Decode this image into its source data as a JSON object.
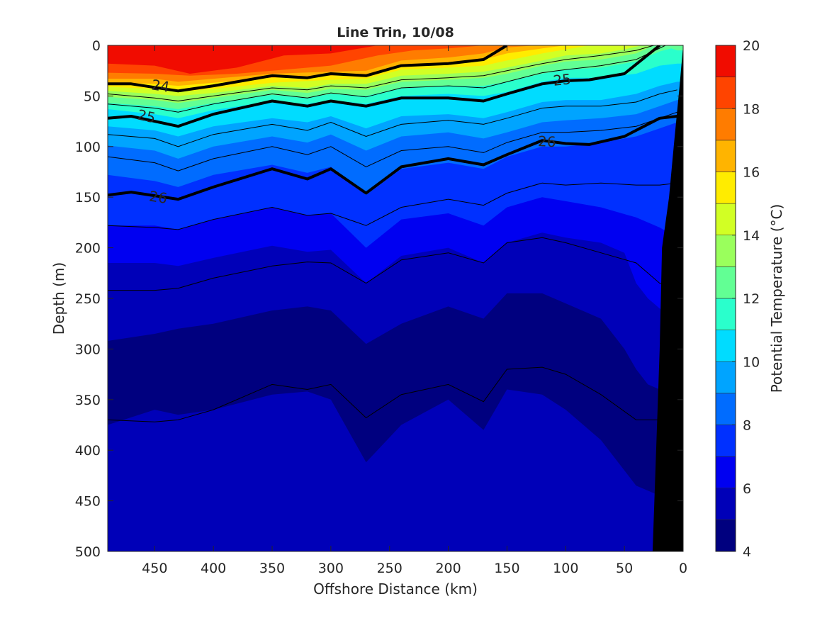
{
  "chart_data": {
    "type": "contourf",
    "title": "Line Trin, 10/08",
    "xlabel": "Offshore Distance (km)",
    "ylabel": "Depth (m)",
    "xlim": [
      490,
      0
    ],
    "ylim": [
      500,
      0
    ],
    "x_reversed": true,
    "y_reversed": true,
    "x_ticks": [
      450,
      400,
      350,
      300,
      250,
      200,
      150,
      100,
      50,
      0
    ],
    "y_ticks": [
      0,
      50,
      100,
      150,
      200,
      250,
      300,
      350,
      400,
      450,
      500
    ],
    "colorbar": {
      "label": "Potential Temperature (°C)",
      "ticks": [
        4,
        6,
        8,
        10,
        12,
        14,
        16,
        18,
        20
      ],
      "levels": [
        4,
        5,
        6,
        7,
        8,
        9,
        10,
        11,
        12,
        13,
        14,
        15,
        16,
        17,
        18,
        19,
        20
      ],
      "colors": [
        "#00007f",
        "#0000b8",
        "#0000f1",
        "#0030ff",
        "#006cff",
        "#00a4ff",
        "#00dcff",
        "#2affcc",
        "#62ff94",
        "#9aff5c",
        "#d2ff24",
        "#ffec00",
        "#ffb400",
        "#ff7c00",
        "#ff4400",
        "#f10c00",
        "#b80000"
      ]
    },
    "temperature_isotherms": [
      {
        "level": 19,
        "x": [
          490,
          450,
          420,
          380,
          340,
          300,
          260,
          220,
          180,
          150
        ],
        "y": [
          18,
          20,
          28,
          22,
          10,
          8,
          0,
          0,
          0,
          0
        ]
      },
      {
        "level": 18,
        "x": [
          490,
          450,
          420,
          380,
          350,
          300,
          260,
          230,
          200,
          170,
          155
        ],
        "y": [
          27,
          28,
          30,
          28,
          25,
          20,
          10,
          5,
          3,
          0,
          0
        ]
      },
      {
        "level": 17,
        "x": [
          490,
          450,
          430,
          400,
          350,
          300,
          270,
          240,
          200,
          170,
          150,
          125
        ],
        "y": [
          33,
          33,
          36,
          33,
          28,
          26,
          25,
          15,
          12,
          8,
          2,
          0
        ]
      },
      {
        "level": 16,
        "x": [
          490,
          450,
          430,
          400,
          350,
          300,
          270,
          240,
          200,
          170,
          150,
          120,
          100
        ],
        "y": [
          37,
          38,
          40,
          37,
          32,
          30,
          29,
          20,
          18,
          14,
          8,
          3,
          0
        ]
      },
      {
        "level": 15,
        "x": [
          490,
          450,
          430,
          400,
          350,
          300,
          270,
          240,
          200,
          170,
          150,
          120,
          100,
          80
        ],
        "y": [
          41,
          43,
          46,
          43,
          37,
          34,
          33,
          24,
          22,
          20,
          15,
          8,
          4,
          0
        ]
      },
      {
        "level": 14,
        "x": [
          490,
          450,
          430,
          400,
          350,
          320,
          300,
          270,
          240,
          200,
          170,
          150,
          120,
          100,
          70,
          50,
          35
        ],
        "y": [
          45,
          48,
          50,
          47,
          40,
          42,
          38,
          38,
          30,
          28,
          26,
          22,
          15,
          10,
          8,
          4,
          0
        ]
      },
      {
        "level": 13,
        "x": [
          490,
          450,
          430,
          400,
          350,
          320,
          300,
          270,
          240,
          200,
          170,
          150,
          120,
          100,
          70,
          40,
          25
        ],
        "y": [
          51,
          54,
          57,
          52,
          44,
          47,
          43,
          44,
          36,
          34,
          32,
          28,
          20,
          16,
          14,
          8,
          0
        ]
      },
      {
        "level": 12,
        "x": [
          490,
          450,
          430,
          400,
          350,
          320,
          300,
          270,
          240,
          200,
          170,
          150,
          120,
          100,
          70,
          40,
          20,
          10,
          5
        ],
        "y": [
          57,
          60,
          63,
          57,
          49,
          52,
          48,
          50,
          42,
          40,
          40,
          36,
          28,
          24,
          22,
          16,
          6,
          3,
          5
        ]
      },
      {
        "level": 11,
        "x": [
          490,
          450,
          430,
          400,
          350,
          320,
          300,
          270,
          240,
          200,
          170,
          150,
          120,
          100,
          70,
          40,
          20,
          5
        ],
        "y": [
          63,
          68,
          72,
          64,
          55,
          58,
          54,
          58,
          50,
          48,
          50,
          46,
          36,
          32,
          32,
          28,
          20,
          18
        ]
      },
      {
        "level": 10,
        "x": [
          490,
          450,
          430,
          400,
          350,
          320,
          300,
          270,
          240,
          200,
          170,
          150,
          120,
          100,
          70,
          40,
          20,
          5
        ],
        "y": [
          80,
          84,
          90,
          80,
          72,
          76,
          70,
          82,
          70,
          68,
          72,
          66,
          56,
          54,
          54,
          48,
          40,
          36
        ]
      },
      {
        "level": 9,
        "x": [
          490,
          450,
          430,
          400,
          350,
          320,
          300,
          270,
          240,
          200,
          170,
          150,
          120,
          100,
          70,
          40,
          20,
          5
        ],
        "y": [
          99,
          104,
          112,
          100,
          90,
          96,
          88,
          104,
          90,
          86,
          92,
          86,
          76,
          74,
          72,
          68,
          60,
          54
        ]
      },
      {
        "level": 8,
        "x": [
          490,
          450,
          430,
          400,
          350,
          320,
          300,
          270,
          240,
          200,
          170,
          150,
          120,
          100,
          70,
          40,
          20,
          5
        ],
        "y": [
          128,
          134,
          140,
          128,
          118,
          126,
          120,
          148,
          122,
          116,
          122,
          110,
          100,
          100,
          96,
          90,
          82,
          76
        ]
      },
      {
        "level": 7,
        "x": [
          490,
          450,
          430,
          400,
          350,
          320,
          300,
          270,
          240,
          200,
          170,
          150,
          120,
          100,
          70,
          40,
          20,
          5
        ],
        "y": [
          178,
          178,
          182,
          172,
          160,
          168,
          166,
          200,
          172,
          166,
          178,
          160,
          150,
          154,
          160,
          170,
          180,
          190
        ]
      },
      {
        "level": 6,
        "x": [
          490,
          450,
          430,
          400,
          350,
          320,
          300,
          270,
          240,
          200,
          170,
          150,
          120,
          100,
          70,
          50,
          40,
          30,
          20,
          5
        ],
        "y": [
          215,
          215,
          218,
          210,
          198,
          204,
          202,
          235,
          208,
          200,
          215,
          195,
          185,
          190,
          195,
          205,
          235,
          250,
          260,
          270
        ]
      },
      {
        "level": 5,
        "x": [
          490,
          450,
          430,
          400,
          350,
          320,
          300,
          270,
          240,
          200,
          170,
          150,
          120,
          100,
          70,
          50,
          40,
          30,
          20
        ],
        "y": [
          292,
          285,
          280,
          275,
          262,
          258,
          262,
          295,
          275,
          258,
          270,
          245,
          245,
          255,
          270,
          300,
          320,
          335,
          340
        ]
      },
      {
        "level": 4,
        "x": [
          490,
          450,
          430,
          400,
          350,
          320,
          300,
          270,
          240,
          200,
          170,
          150,
          120,
          100,
          70,
          50,
          40,
          30,
          20
        ],
        "y": [
          375,
          360,
          365,
          360,
          345,
          342,
          350,
          412,
          375,
          350,
          380,
          340,
          345,
          360,
          390,
          420,
          435,
          440,
          445
        ]
      }
    ],
    "density_contours": [
      {
        "label": "24",
        "x": [
          490,
          470,
          430,
          400,
          350,
          320,
          300,
          270,
          240,
          200,
          170,
          150
        ],
        "y": [
          38,
          38,
          45,
          40,
          30,
          32,
          28,
          30,
          20,
          18,
          14,
          0
        ],
        "label_x": 445,
        "label_y": 40
      },
      {
        "label": "25",
        "x": [
          490,
          470,
          430,
          400,
          350,
          320,
          300,
          270,
          240,
          200,
          170,
          150,
          120,
          100,
          80,
          50,
          20
        ],
        "y": [
          72,
          70,
          80,
          68,
          55,
          60,
          55,
          60,
          52,
          52,
          55,
          48,
          38,
          35,
          34,
          28,
          0
        ],
        "label_x": 457,
        "label_y": 70,
        "label2_x": 103,
        "label2_y": 34
      },
      {
        "label": "26",
        "x": [
          490,
          470,
          430,
          400,
          350,
          320,
          300,
          270,
          240,
          200,
          170,
          150,
          120,
          100,
          80,
          50,
          20,
          5
        ],
        "y": [
          148,
          145,
          152,
          140,
          122,
          132,
          122,
          146,
          120,
          112,
          118,
          108,
          94,
          97,
          98,
          90,
          72,
          70
        ],
        "label_x": 447,
        "label_y": 150,
        "label2_x": 116,
        "label2_y": 95
      }
    ],
    "thin_contours": [
      {
        "x": [
          490,
          450,
          430,
          400,
          350,
          320,
          300,
          270,
          240,
          200,
          170,
          150,
          120,
          100,
          70,
          40,
          25
        ],
        "y": [
          48,
          52,
          55,
          50,
          42,
          44,
          40,
          42,
          34,
          32,
          30,
          25,
          18,
          14,
          10,
          5,
          0
        ]
      },
      {
        "x": [
          490,
          450,
          430,
          400,
          350,
          320,
          300,
          270,
          240,
          200,
          170,
          150,
          120,
          100,
          70,
          40,
          15
        ],
        "y": [
          58,
          62,
          66,
          58,
          48,
          52,
          47,
          51,
          42,
          40,
          42,
          36,
          27,
          24,
          20,
          14,
          0
        ]
      },
      {
        "x": [
          490,
          450,
          430,
          400,
          350,
          320,
          300,
          270,
          240,
          200,
          170,
          150,
          120,
          100,
          70,
          40,
          20,
          5
        ],
        "y": [
          88,
          92,
          100,
          88,
          78,
          84,
          76,
          90,
          78,
          74,
          78,
          72,
          62,
          60,
          60,
          56,
          48,
          44
        ]
      },
      {
        "x": [
          490,
          450,
          430,
          400,
          350,
          320,
          300,
          270,
          240,
          200,
          170,
          150,
          120,
          100,
          70,
          40,
          20,
          5
        ],
        "y": [
          110,
          116,
          124,
          112,
          100,
          108,
          100,
          120,
          104,
          100,
          106,
          96,
          86,
          86,
          84,
          80,
          72,
          66
        ]
      },
      {
        "x": [
          490,
          450,
          430,
          400,
          350,
          320,
          300,
          270,
          240,
          200,
          170,
          150,
          120,
          100,
          70,
          40,
          20,
          5
        ],
        "y": [
          178,
          180,
          182,
          172,
          160,
          168,
          166,
          178,
          160,
          152,
          158,
          146,
          136,
          138,
          136,
          138,
          138,
          136
        ]
      },
      {
        "x": [
          490,
          450,
          430,
          400,
          350,
          320,
          300,
          270,
          240,
          200,
          170,
          150,
          120,
          100,
          70,
          40,
          20,
          5
        ],
        "y": [
          242,
          242,
          240,
          230,
          218,
          214,
          215,
          235,
          212,
          205,
          215,
          195,
          190,
          195,
          205,
          215,
          235,
          240
        ]
      },
      {
        "x": [
          490,
          450,
          430,
          400,
          350,
          320,
          300,
          270,
          240,
          200,
          170,
          150,
          120,
          100,
          70,
          40,
          20
        ],
        "y": [
          370,
          372,
          370,
          360,
          335,
          340,
          335,
          368,
          345,
          335,
          352,
          320,
          318,
          325,
          345,
          370,
          370
        ]
      }
    ],
    "bathymetry": {
      "color": "#000000",
      "x": [
        26,
        23,
        20,
        18,
        12,
        8,
        3,
        0
      ],
      "depth": [
        500,
        400,
        300,
        200,
        150,
        100,
        40,
        0
      ]
    }
  }
}
